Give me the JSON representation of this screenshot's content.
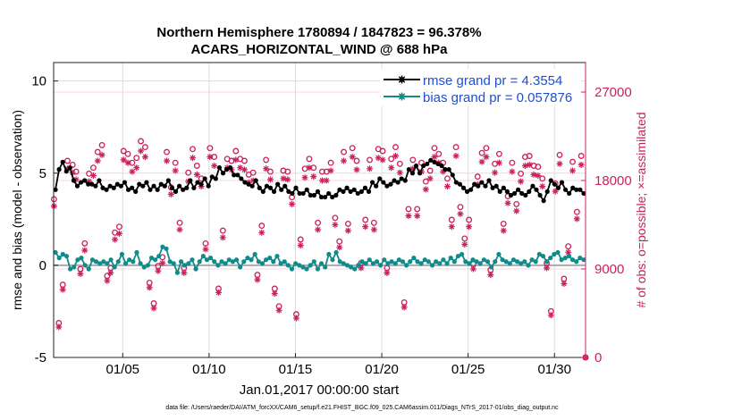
{
  "chart_data": {
    "type": "line",
    "title_line1": "Northern Hemisphere 1780894 / 1847823 = 96.378%",
    "title_line2": "ACARS_HORIZONTAL_WIND @ 688 hPa",
    "xlabel": "Jan.01,2017 00:00:00 start",
    "ylabel_left": "rmse and bias (model - observation)",
    "ylabel_right": "# of obs: o=possible; ×=assimilated",
    "footer": "data file: /Users/raeder/DAI/ATM_forcXX/CAM6_setup/f.e21.FHIST_BGC.f09_025.CAM6assim.011/Diags_NTrS_2017-01/obs_diag_output.nc",
    "x_unit": "day of Jan 2017",
    "xlim": [
      1,
      31.8
    ],
    "ylim_left": [
      -5,
      11
    ],
    "ylim_right": [
      0,
      30000
    ],
    "xticks": [
      {
        "value": 5,
        "label": "01/05"
      },
      {
        "value": 10,
        "label": "01/10"
      },
      {
        "value": 15,
        "label": "01/15"
      },
      {
        "value": 20,
        "label": "01/20"
      },
      {
        "value": 25,
        "label": "01/25"
      },
      {
        "value": 30,
        "label": "01/30"
      }
    ],
    "yticks_left": [
      {
        "value": -5,
        "label": "-5"
      },
      {
        "value": 0,
        "label": "0"
      },
      {
        "value": 5,
        "label": "5"
      },
      {
        "value": 10,
        "label": "10"
      }
    ],
    "yticks_right": [
      {
        "value": 0,
        "label": "0"
      },
      {
        "value": 9000,
        "label": "9000"
      },
      {
        "value": 18000,
        "label": "18000"
      },
      {
        "value": 27000,
        "label": "27000"
      }
    ],
    "colors": {
      "rmse": "#000000",
      "bias": "#138a8a",
      "obs": "#cc1f5e",
      "grid": "#dddddd",
      "zero": "#aaaaaa"
    },
    "legend": {
      "placement": "top-right",
      "entries": [
        "rmse grand pr = 4.3554",
        "bias grand pr = 0.057876"
      ]
    },
    "series": [
      {
        "name": "rmse",
        "axis": "left",
        "values": [
          4.1,
          5.2,
          5.6,
          5.1,
          5.3,
          4.6,
          4.3,
          4.5,
          4.6,
          4.4,
          4.4,
          4.3,
          4.6,
          4.2,
          4.1,
          4.3,
          4.2,
          4.4,
          4.3,
          4.5,
          4.1,
          4.2,
          4.0,
          4.4,
          4.3,
          4.5,
          4.1,
          4.3,
          4.1,
          4.4,
          4.3,
          4.6,
          4.2,
          4.0,
          4.3,
          4.1,
          4.2,
          4.6,
          4.2,
          4.5,
          4.4,
          4.7,
          4.3,
          4.8,
          4.7,
          5.3,
          5.0,
          5.2,
          5.3,
          4.9,
          4.9,
          4.7,
          4.5,
          4.4,
          4.3,
          4.6,
          4.2,
          4.0,
          4.3,
          4.2,
          4.0,
          4.4,
          4.1,
          4.3,
          4.0,
          3.9,
          4.2,
          3.9,
          3.9,
          4.1,
          3.8,
          3.8,
          4.0,
          3.7,
          3.7,
          3.9,
          3.7,
          3.8,
          4.1,
          4.0,
          4.2,
          4.0,
          4.1,
          3.9,
          4.0,
          4.2,
          4.0,
          4.5,
          4.3,
          4.7,
          4.5,
          4.3,
          4.4,
          4.6,
          4.5,
          4.7,
          4.6,
          5.2,
          5.0,
          5.4,
          5.0,
          5.4,
          5.5,
          5.7,
          5.6,
          5.5,
          5.4,
          5.2,
          5.2,
          4.9,
          4.5,
          4.4,
          4.2,
          4.0,
          4.1,
          4.4,
          4.3,
          4.5,
          4.3,
          4.6,
          4.2,
          4.3,
          4.0,
          4.2,
          4.0,
          3.8,
          3.9,
          4.1,
          3.9,
          3.8,
          4.0,
          4.3,
          4.1,
          3.8,
          3.5,
          4.0,
          4.6,
          4.4,
          4.2,
          4.5,
          4.1,
          3.9,
          4.2,
          4.1,
          4.1,
          3.9
        ]
      },
      {
        "name": "bias",
        "axis": "left",
        "values": [
          0.7,
          0.4,
          0.6,
          0.5,
          -0.2,
          -0.1,
          0.3,
          0.4,
          0.0,
          -0.2,
          0.3,
          0.2,
          0.1,
          0.2,
          0.1,
          0.3,
          -0.1,
          0.2,
          0.6,
          0.1,
          0.3,
          0.2,
          0.7,
          0.1,
          -0.1,
          0.0,
          0.4,
          0.3,
          0.5,
          1.0,
          0.9,
          0.2,
          0.1,
          -0.4,
          0.2,
          0.0,
          0.1,
          0.3,
          -0.2,
          0.2,
          0.5,
          0.3,
          0.4,
          0.2,
          0.0,
          0.2,
          0.1,
          0.3,
          0.2,
          0.3,
          -0.1,
          0.2,
          0.4,
          0.3,
          0.6,
          0.2,
          0.1,
          0.3,
          0.4,
          0.2,
          0.5,
          0.1,
          0.2,
          0.0,
          -0.2,
          0.1,
          0.0,
          -0.1,
          -0.2,
          0.0,
          0.2,
          -0.2,
          0.1,
          -0.1,
          0.6,
          0.3,
          0.7,
          0.2,
          0.1,
          0.0,
          -0.1,
          -0.2,
          0.0,
          0.2,
          0.1,
          0.3,
          0.1,
          0.2,
          0.0,
          0.3,
          0.1,
          0.2,
          0.1,
          0.3,
          0.2,
          0.0,
          0.2,
          0.4,
          0.2,
          0.1,
          0.3,
          0.2,
          0.0,
          0.2,
          0.1,
          0.3,
          0.1,
          0.4,
          0.2,
          0.5,
          0.6,
          0.2,
          0.1,
          0.3,
          0.2,
          0.1,
          0.3,
          0.2,
          -0.1,
          0.2,
          0.6,
          0.3,
          0.2,
          0.1,
          0.3,
          0.2,
          0.1,
          0.2,
          0.0,
          0.3,
          0.2,
          0.6,
          0.5,
          0.2,
          0.4,
          0.6,
          0.7,
          0.3,
          0.4,
          0.5,
          0.3,
          0.2,
          0.4,
          0.3
        ]
      },
      {
        "name": "obs possible",
        "axis": "right",
        "marker": "o",
        "x": [
          1.02,
          1.3,
          1.53,
          1.8,
          2.1,
          2.3,
          2.55,
          2.8,
          3.05,
          3.3,
          3.55,
          3.8,
          4.1,
          4.3,
          4.55,
          4.8,
          5.05,
          5.3,
          5.55,
          5.8,
          6.05,
          6.3,
          6.55,
          6.8,
          7.05,
          7.3,
          7.55,
          7.8,
          8.05,
          8.3,
          8.55,
          8.8,
          9.05,
          9.3,
          9.55,
          9.8,
          10.05,
          10.3,
          10.55,
          10.8,
          11.05,
          11.3,
          11.55,
          11.8,
          12.05,
          12.3,
          12.55,
          12.8,
          13.05,
          13.3,
          13.55,
          13.8,
          14.05,
          14.3,
          14.55,
          14.8,
          15.05,
          15.3,
          15.55,
          15.8,
          16.05,
          16.3,
          16.55,
          16.8,
          17.05,
          17.3,
          17.55,
          17.8,
          18.05,
          18.3,
          18.55,
          18.8,
          19.05,
          19.3,
          19.55,
          19.8,
          20.05,
          20.3,
          20.55,
          20.8,
          21.05,
          21.3,
          21.55,
          21.8,
          22.05,
          22.3,
          22.55,
          22.8,
          23.05,
          23.3,
          23.55,
          23.8,
          24.05,
          24.3,
          24.55,
          24.8,
          25.05,
          25.3,
          25.55,
          25.8,
          26.05,
          26.3,
          26.55,
          26.8,
          27.05,
          27.3,
          27.55,
          27.8,
          28.05,
          28.3,
          28.55,
          28.8,
          29.05,
          29.3,
          29.55,
          29.8,
          30.05,
          30.3,
          30.55,
          30.8,
          31.05,
          31.3,
          31.55,
          31.8
        ],
        "values": [
          16100,
          3500,
          7400,
          20000,
          19600,
          18900,
          9000,
          11600,
          18700,
          19300,
          20900,
          21600,
          8300,
          9100,
          12700,
          13300,
          21000,
          20700,
          19800,
          20300,
          22000,
          21400,
          7600,
          5500,
          9300,
          10200,
          20900,
          17300,
          19800,
          13700,
          9100,
          18800,
          21200,
          19500,
          18200,
          11600,
          21300,
          20400,
          7000,
          12900,
          20200,
          20000,
          21000,
          20200,
          20000,
          18600,
          18800,
          8400,
          13400,
          20100,
          18900,
          7000,
          5200,
          19000,
          18900,
          16300,
          4400,
          12000,
          19200,
          20200,
          19300,
          13700,
          18900,
          18900,
          19800,
          14200,
          11800,
          20900,
          13600,
          21300,
          20000,
          9600,
          14000,
          20100,
          13700,
          21200,
          21000,
          9100,
          20200,
          21400,
          19700,
          5600,
          15100,
          20100,
          15100,
          19800,
          17900,
          19000,
          21300,
          20700,
          19800,
          18200,
          14000,
          21400,
          15300,
          12100,
          14000,
          9500,
          18400,
          20800,
          21300,
          8900,
          19700,
          20700,
          13600,
          16400,
          19800,
          15600,
          18700,
          20400,
          20500,
          19500,
          19400,
          18200,
          9600,
          4700,
          17700,
          20600,
          8000,
          11300,
          19900,
          14800,
          20500,
          0
        ]
      },
      {
        "name": "obs assimilated",
        "axis": "right",
        "marker": "x",
        "x": [
          1.02,
          1.3,
          1.53,
          1.8,
          2.1,
          2.3,
          2.55,
          2.8,
          3.05,
          3.3,
          3.55,
          3.8,
          4.1,
          4.3,
          4.55,
          4.8,
          5.05,
          5.3,
          5.55,
          5.8,
          6.05,
          6.3,
          6.55,
          6.8,
          7.05,
          7.3,
          7.55,
          7.8,
          8.05,
          8.3,
          8.55,
          8.8,
          9.05,
          9.3,
          9.55,
          9.8,
          10.05,
          10.3,
          10.55,
          10.8,
          11.05,
          11.3,
          11.55,
          11.8,
          12.05,
          12.3,
          12.55,
          12.8,
          13.05,
          13.3,
          13.55,
          13.8,
          14.05,
          14.3,
          14.55,
          14.8,
          15.05,
          15.3,
          15.55,
          15.8,
          16.05,
          16.3,
          16.55,
          16.8,
          17.05,
          17.3,
          17.55,
          17.8,
          18.05,
          18.3,
          18.55,
          18.8,
          19.05,
          19.3,
          19.55,
          19.8,
          20.05,
          20.3,
          20.55,
          20.8,
          21.05,
          21.3,
          21.55,
          21.8,
          22.05,
          22.3,
          22.55,
          22.8,
          23.05,
          23.3,
          23.55,
          23.8,
          24.05,
          24.3,
          24.55,
          24.8,
          25.05,
          25.3,
          25.55,
          25.8,
          26.05,
          26.3,
          26.55,
          26.8,
          27.05,
          27.3,
          27.55,
          27.8,
          28.05,
          28.3,
          28.55,
          28.8,
          29.05,
          29.3,
          29.55,
          29.8,
          30.05,
          30.3,
          30.55,
          30.8,
          31.05,
          31.3,
          31.55,
          31.8
        ],
        "values": [
          15400,
          3100,
          6900,
          19200,
          18800,
          18100,
          8500,
          10900,
          17900,
          18500,
          20000,
          20600,
          7800,
          8600,
          12000,
          12600,
          20100,
          19800,
          18900,
          19300,
          21000,
          20400,
          7100,
          5000,
          8800,
          9600,
          20000,
          16600,
          19000,
          13000,
          8600,
          17900,
          20300,
          18600,
          17400,
          11000,
          20400,
          19500,
          6600,
          12200,
          19300,
          19100,
          20100,
          19300,
          19100,
          17800,
          18000,
          7900,
          12700,
          19200,
          18100,
          6500,
          4800,
          18200,
          18100,
          15600,
          4000,
          11400,
          18300,
          19300,
          18400,
          13000,
          18000,
          18000,
          19000,
          13500,
          11200,
          20000,
          12900,
          20400,
          19100,
          9100,
          13300,
          19200,
          13000,
          20300,
          20100,
          8600,
          19300,
          20500,
          18800,
          5100,
          14400,
          19200,
          14400,
          18900,
          17100,
          18200,
          20400,
          19800,
          18900,
          17400,
          13300,
          20500,
          14600,
          11500,
          13300,
          9000,
          17600,
          19900,
          20400,
          8400,
          18800,
          19800,
          12900,
          15700,
          18900,
          14900,
          17900,
          19500,
          19600,
          18600,
          18500,
          17400,
          9100,
          4300,
          16900,
          19700,
          7500,
          10700,
          19000,
          14100,
          19600,
          0
        ]
      }
    ]
  }
}
